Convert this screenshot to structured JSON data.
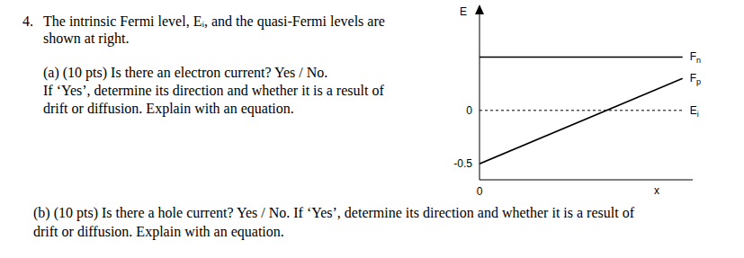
{
  "problem": {
    "number": "4.",
    "intro": [
      "The intrinsic Fermi level, Eᵢ, and the quasi-Fermi levels are",
      "shown at right."
    ],
    "parts": [
      {
        "lines": [
          "(a) (10 pts) Is there an electron current? Yes / No.",
          "If ‘Yes’, determine its direction and whether it is a result of",
          "drift or diffusion. Explain with an equation."
        ]
      },
      {
        "lines": [
          "(b) (10 pts) Is there a hole current?  Yes / No.  If ‘Yes’, determine its direction and whether it is a result of",
          "drift or diffusion. Explain with an equation."
        ]
      }
    ]
  },
  "chart_data": {
    "type": "line",
    "ylabel": "E",
    "xlabel": "x",
    "x": [
      0,
      1
    ],
    "series": [
      {
        "name": "Fn",
        "color": "#000000",
        "line_style": "solid",
        "values": [
          0.5,
          0.5
        ]
      },
      {
        "name": "Fp",
        "color": "#000000",
        "line_style": "solid",
        "values": [
          -0.5,
          0.3
        ]
      },
      {
        "name": "Ei",
        "color": "#000000",
        "line_style": "dashed",
        "values": [
          0,
          0
        ]
      }
    ],
    "xlim": [
      0,
      1.05
    ],
    "xticks": [
      0
    ],
    "ylim": [
      -0.65,
      0.95
    ],
    "yticks": [
      0,
      -0.5
    ],
    "grid": false,
    "legend": false
  }
}
